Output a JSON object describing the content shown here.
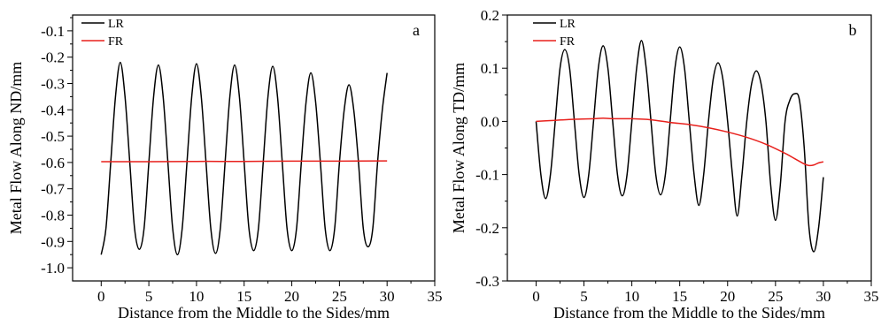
{
  "chart_data": [
    {
      "type": "line",
      "panel_label": "a",
      "xlabel": "Distance from the Middle to the Sides/mm",
      "ylabel": "Metal Flow Along ND/mm",
      "xlim": [
        -3,
        35
      ],
      "ylim": [
        -1.05,
        -0.04
      ],
      "x_ticks": [
        0,
        5,
        10,
        15,
        20,
        25,
        30,
        35
      ],
      "x_tick_labels": [
        "0",
        "5",
        "10",
        "15",
        "20",
        "25",
        "30",
        "35"
      ],
      "y_ticks": [
        -1.0,
        -0.9,
        -0.8,
        -0.7,
        -0.6,
        -0.5,
        -0.4,
        -0.3,
        -0.2,
        -0.1
      ],
      "y_tick_labels": [
        "-1.0",
        "-0.9",
        "-0.8",
        "-0.7",
        "-0.6",
        "-0.5",
        "-0.4",
        "-0.3",
        "-0.2",
        "-0.1"
      ],
      "legend_position": "top-left",
      "series": [
        {
          "name": "LR",
          "color": "#000000",
          "x": [
            0,
            0.5,
            1,
            1.5,
            2,
            2.5,
            3,
            3.5,
            4,
            4.5,
            5,
            5.5,
            6,
            6.5,
            7,
            7.5,
            8,
            8.5,
            9,
            9.5,
            10,
            10.5,
            11,
            11.5,
            12,
            12.5,
            13,
            13.5,
            14,
            14.5,
            15,
            15.5,
            16,
            16.5,
            17,
            17.5,
            18,
            18.5,
            19,
            19.5,
            20,
            20.5,
            21,
            21.5,
            22,
            22.5,
            23,
            23.5,
            24,
            24.5,
            25,
            25.5,
            26,
            26.5,
            27,
            27.5,
            28,
            28.5,
            29,
            29.5,
            30
          ],
          "y": [
            -0.95,
            -0.85,
            -0.6,
            -0.35,
            -0.22,
            -0.35,
            -0.6,
            -0.85,
            -0.93,
            -0.85,
            -0.6,
            -0.35,
            -0.23,
            -0.35,
            -0.6,
            -0.85,
            -0.95,
            -0.85,
            -0.6,
            -0.35,
            -0.225,
            -0.35,
            -0.6,
            -0.85,
            -0.945,
            -0.85,
            -0.6,
            -0.35,
            -0.23,
            -0.35,
            -0.6,
            -0.85,
            -0.935,
            -0.85,
            -0.6,
            -0.35,
            -0.235,
            -0.35,
            -0.6,
            -0.85,
            -0.935,
            -0.85,
            -0.6,
            -0.37,
            -0.26,
            -0.37,
            -0.6,
            -0.85,
            -0.935,
            -0.85,
            -0.6,
            -0.4,
            -0.305,
            -0.4,
            -0.6,
            -0.85,
            -0.92,
            -0.85,
            -0.6,
            -0.4,
            -0.26
          ]
        },
        {
          "name": "FR",
          "color": "#e8201c",
          "x": [
            0,
            5,
            10,
            15,
            20,
            25,
            30
          ],
          "y": [
            -0.597,
            -0.597,
            -0.596,
            -0.596,
            -0.595,
            -0.595,
            -0.594
          ]
        }
      ]
    },
    {
      "type": "line",
      "panel_label": "b",
      "xlabel": "Distance from the Middle to the Sides/mm",
      "ylabel": "Metal Flow Along TD/mm",
      "xlim": [
        -3,
        35
      ],
      "ylim": [
        -0.3,
        0.2
      ],
      "x_ticks": [
        0,
        5,
        10,
        15,
        20,
        25,
        30,
        35
      ],
      "x_tick_labels": [
        "0",
        "5",
        "10",
        "15",
        "20",
        "25",
        "30",
        "35"
      ],
      "y_ticks": [
        -0.3,
        -0.2,
        -0.1,
        0.0,
        0.1,
        0.2
      ],
      "y_tick_labels": [
        "-0.3",
        "-0.2",
        "-0.1",
        "0.0",
        "0.1",
        "0.2"
      ],
      "legend_position": "top-left",
      "series": [
        {
          "name": "LR",
          "color": "#000000",
          "x": [
            0,
            0.5,
            1,
            1.5,
            2,
            2.5,
            3,
            3.5,
            4,
            4.5,
            5,
            5.5,
            6,
            6.5,
            7,
            7.5,
            8,
            8.5,
            9,
            9.5,
            10,
            10.5,
            11,
            11.5,
            12,
            12.5,
            13,
            13.5,
            14,
            14.5,
            15,
            15.5,
            16,
            16.5,
            17,
            17.5,
            18,
            18.5,
            19,
            19.5,
            20,
            20.5,
            21,
            21.5,
            22,
            22.5,
            23,
            23.5,
            24,
            24.5,
            25,
            25.5,
            26,
            26.5,
            27,
            27.5,
            28,
            28.5,
            29,
            29.5,
            30
          ],
          "y": [
            0.0,
            -0.1,
            -0.145,
            -0.1,
            0.0,
            0.1,
            0.135,
            0.1,
            0.0,
            -0.1,
            -0.143,
            -0.1,
            0.0,
            0.1,
            0.142,
            0.1,
            0.0,
            -0.1,
            -0.14,
            -0.1,
            0.0,
            0.1,
            0.152,
            0.1,
            0.0,
            -0.1,
            -0.138,
            -0.1,
            0.0,
            0.1,
            0.14,
            0.1,
            0.0,
            -0.1,
            -0.158,
            -0.1,
            0.0,
            0.08,
            0.11,
            0.08,
            0.0,
            -0.1,
            -0.178,
            -0.1,
            0.0,
            0.07,
            0.095,
            0.07,
            0.0,
            -0.12,
            -0.186,
            -0.12,
            0.0,
            0.04,
            0.052,
            0.04,
            -0.05,
            -0.2,
            -0.245,
            -0.2,
            -0.105
          ]
        },
        {
          "name": "FR",
          "color": "#e8201c",
          "x": [
            0,
            2,
            4,
            6,
            7,
            8,
            10,
            12,
            14,
            16,
            18,
            20,
            22,
            24,
            26,
            27,
            28,
            28.5,
            29,
            29.5,
            30
          ],
          "y": [
            0.0,
            0.002,
            0.004,
            0.005,
            0.006,
            0.005,
            0.005,
            0.003,
            -0.002,
            -0.006,
            -0.012,
            -0.02,
            -0.03,
            -0.043,
            -0.06,
            -0.07,
            -0.08,
            -0.083,
            -0.082,
            -0.078,
            -0.076
          ]
        }
      ]
    }
  ]
}
